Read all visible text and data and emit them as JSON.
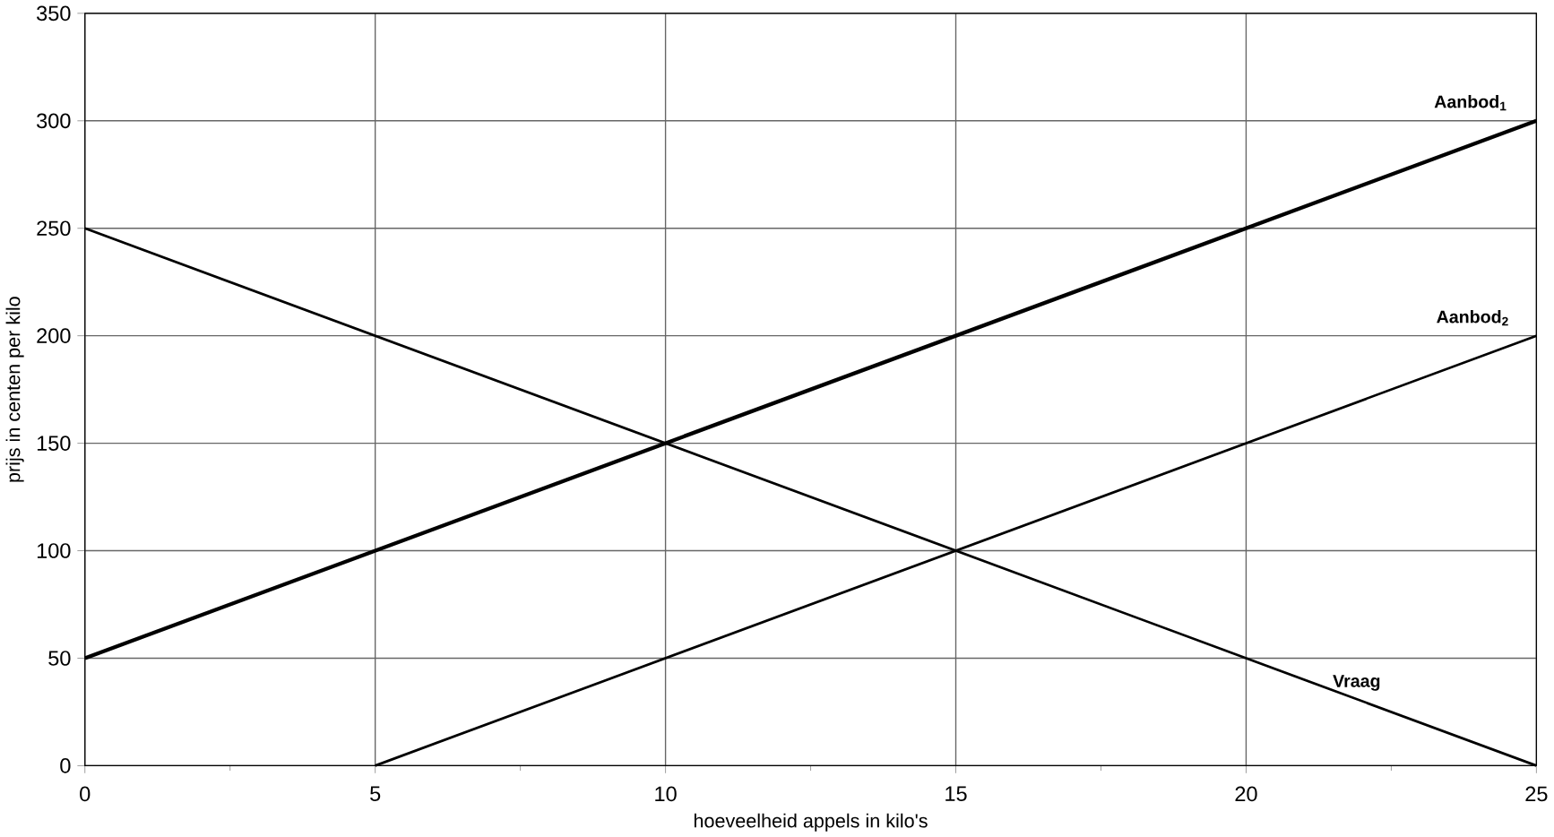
{
  "chart_data": {
    "type": "line",
    "xlabel": "hoeveelheid appels in kilo's",
    "ylabel": "prijs in centen per kilo",
    "xlim": [
      0,
      25
    ],
    "ylim": [
      0,
      350
    ],
    "xticks": [
      0,
      5,
      10,
      15,
      20,
      25
    ],
    "yticks": [
      0,
      50,
      100,
      150,
      200,
      250,
      300,
      350
    ],
    "grid": true,
    "marker": "none",
    "line_style": "solid",
    "series": [
      {
        "name": "Aanbod$_{1}$",
        "color": "#000000",
        "x": [
          0,
          25
        ],
        "values": [
          50,
          300
        ]
      },
      {
        "name": "Aanbod$_{2}$",
        "color": "#000000",
        "x": [
          5,
          25
        ],
        "values": [
          0,
          200
        ]
      },
      {
        "name": "Vraag",
        "color": "#000000",
        "x": [
          0,
          25
        ],
        "values": [
          250,
          0
        ]
      }
    ]
  }
}
